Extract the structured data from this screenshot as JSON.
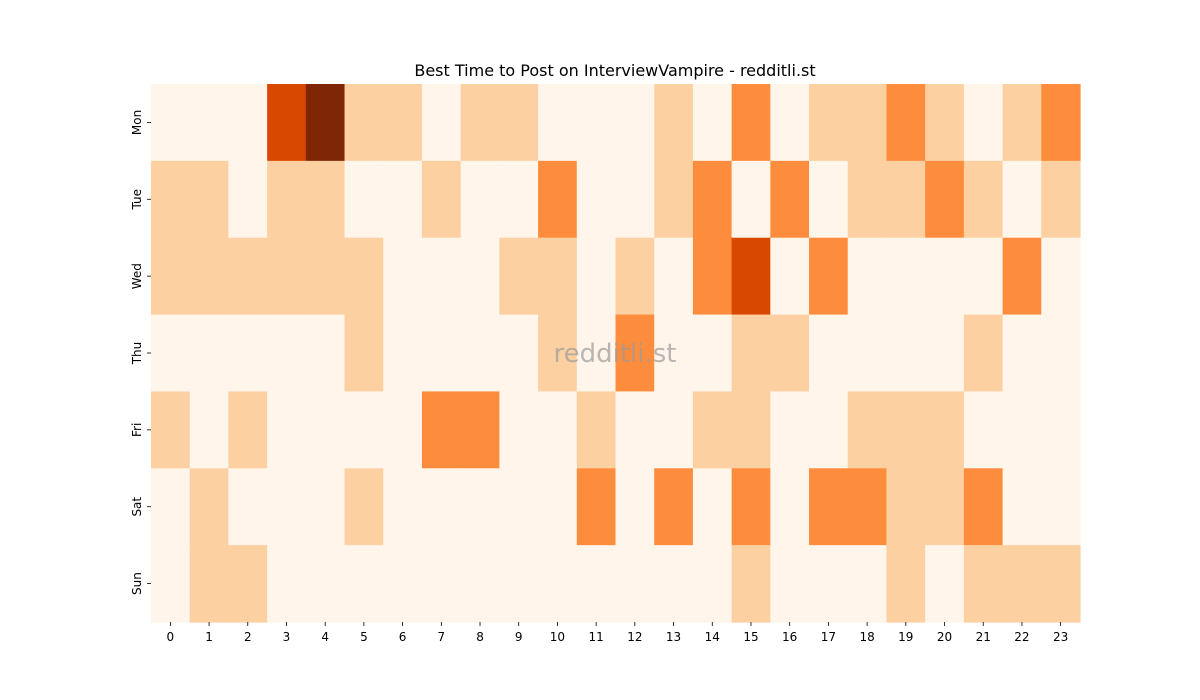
{
  "chart_data": {
    "type": "heatmap",
    "title": "Best Time to Post on InterviewVampire - redditli.st",
    "watermark": "redditli.st",
    "x": [
      "0",
      "1",
      "2",
      "3",
      "4",
      "5",
      "6",
      "7",
      "8",
      "9",
      "10",
      "11",
      "12",
      "13",
      "14",
      "15",
      "16",
      "17",
      "18",
      "19",
      "20",
      "21",
      "22",
      "23"
    ],
    "y": [
      "Mon",
      "Tue",
      "Wed",
      "Thu",
      "Fri",
      "Sat",
      "Sun"
    ],
    "values": [
      [
        0,
        0,
        0,
        3,
        4,
        1,
        1,
        0,
        1,
        1,
        0,
        0,
        0,
        1,
        0,
        2,
        0,
        1,
        1,
        2,
        1,
        0,
        1,
        2
      ],
      [
        1,
        1,
        0,
        1,
        1,
        0,
        0,
        1,
        0,
        0,
        2,
        0,
        0,
        1,
        2,
        0,
        2,
        0,
        1,
        1,
        2,
        1,
        0,
        1
      ],
      [
        1,
        1,
        1,
        1,
        1,
        1,
        0,
        0,
        0,
        1,
        1,
        0,
        1,
        0,
        2,
        3,
        0,
        2,
        0,
        0,
        0,
        0,
        2,
        0
      ],
      [
        0,
        0,
        0,
        0,
        0,
        1,
        0,
        0,
        0,
        0,
        1,
        0,
        2,
        0,
        0,
        1,
        1,
        0,
        0,
        0,
        0,
        1,
        0,
        0
      ],
      [
        1,
        0,
        1,
        0,
        0,
        0,
        0,
        2,
        2,
        0,
        0,
        1,
        0,
        0,
        1,
        1,
        0,
        0,
        1,
        1,
        1,
        0,
        0,
        0
      ],
      [
        0,
        1,
        0,
        0,
        0,
        1,
        0,
        0,
        0,
        0,
        0,
        2,
        0,
        2,
        0,
        2,
        0,
        2,
        2,
        1,
        1,
        2,
        0,
        0
      ],
      [
        0,
        1,
        1,
        0,
        0,
        0,
        0,
        0,
        0,
        0,
        0,
        0,
        0,
        0,
        0,
        1,
        0,
        0,
        0,
        1,
        0,
        1,
        1,
        1
      ]
    ],
    "colormap": [
      "#fff5eb",
      "#fdd0a2",
      "#fd8d3c",
      "#d94801",
      "#7f2704"
    ],
    "grid": false,
    "legend": "none"
  }
}
